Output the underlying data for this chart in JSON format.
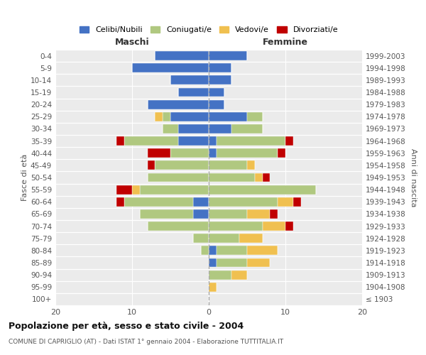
{
  "age_groups": [
    "100+",
    "95-99",
    "90-94",
    "85-89",
    "80-84",
    "75-79",
    "70-74",
    "65-69",
    "60-64",
    "55-59",
    "50-54",
    "45-49",
    "40-44",
    "35-39",
    "30-34",
    "25-29",
    "20-24",
    "15-19",
    "10-14",
    "5-9",
    "0-4"
  ],
  "birth_years": [
    "≤ 1903",
    "1904-1908",
    "1909-1913",
    "1914-1918",
    "1919-1923",
    "1924-1928",
    "1929-1933",
    "1934-1938",
    "1939-1943",
    "1944-1948",
    "1949-1953",
    "1954-1958",
    "1959-1963",
    "1964-1968",
    "1969-1973",
    "1974-1978",
    "1979-1983",
    "1984-1988",
    "1989-1993",
    "1994-1998",
    "1999-2003"
  ],
  "male": {
    "celibi": [
      0,
      0,
      0,
      0,
      0,
      0,
      0,
      2,
      2,
      0,
      0,
      0,
      0,
      4,
      4,
      5,
      8,
      4,
      5,
      10,
      7
    ],
    "coniugati": [
      0,
      0,
      0,
      0,
      1,
      2,
      8,
      7,
      9,
      9,
      8,
      7,
      5,
      7,
      2,
      1,
      0,
      0,
      0,
      0,
      0
    ],
    "vedovi": [
      0,
      0,
      0,
      0,
      0,
      0,
      0,
      0,
      0,
      1,
      0,
      0,
      0,
      0,
      0,
      1,
      0,
      0,
      0,
      0,
      0
    ],
    "divorziati": [
      0,
      0,
      0,
      0,
      0,
      0,
      0,
      0,
      1,
      2,
      0,
      1,
      3,
      1,
      0,
      0,
      0,
      0,
      0,
      0,
      0
    ]
  },
  "female": {
    "nubili": [
      0,
      0,
      0,
      1,
      1,
      0,
      0,
      0,
      0,
      0,
      0,
      0,
      1,
      1,
      3,
      5,
      2,
      2,
      3,
      3,
      5
    ],
    "coniugate": [
      0,
      0,
      3,
      4,
      4,
      4,
      7,
      5,
      9,
      14,
      6,
      5,
      8,
      9,
      4,
      2,
      0,
      0,
      0,
      0,
      0
    ],
    "vedove": [
      0,
      1,
      2,
      3,
      4,
      3,
      3,
      3,
      2,
      0,
      1,
      1,
      0,
      0,
      0,
      0,
      0,
      0,
      0,
      0,
      0
    ],
    "divorziate": [
      0,
      0,
      0,
      0,
      0,
      0,
      1,
      1,
      1,
      0,
      1,
      0,
      1,
      1,
      0,
      0,
      0,
      0,
      0,
      0,
      0
    ]
  },
  "colors": {
    "celibi_nubili": "#4472C4",
    "coniugati": "#B0C880",
    "vedovi": "#F0C050",
    "divorziati": "#C00000"
  },
  "xlim": 20,
  "title": "Popolazione per età, sesso e stato civile - 2004",
  "subtitle": "COMUNE DI CAPRIGLIO (AT) - Dati ISTAT 1° gennaio 2004 - Elaborazione TUTTITALIA.IT",
  "ylabel_left": "Fasce di età",
  "ylabel_right": "Anni di nascita",
  "xlabel_left": "Maschi",
  "xlabel_right": "Femmine",
  "legend_labels": [
    "Celibi/Nubili",
    "Coniugati/e",
    "Vedovi/e",
    "Divorziati/e"
  ],
  "background_color": "#ebebeb"
}
